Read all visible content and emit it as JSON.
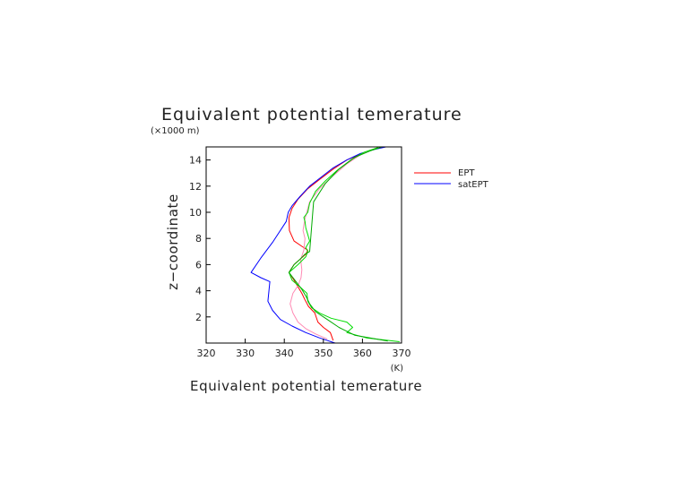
{
  "chart_data": {
    "type": "line",
    "title": "Equivalent potential temerature",
    "xlabel": "Equivalent potential temerature",
    "ylabel": "z−coordinate",
    "x_units": "(K)",
    "y_units": "(×1000 m)",
    "xlim": [
      320,
      370
    ],
    "ylim": [
      0,
      15
    ],
    "xticks": [
      "320",
      "330",
      "340",
      "350",
      "360",
      "370"
    ],
    "yticks": [
      "2",
      "4",
      "6",
      "8",
      "10",
      "12",
      "14"
    ],
    "grid": false,
    "legend_position": "right",
    "series": [
      {
        "name": "EPT",
        "color": "#ff0000",
        "x": [
          352.5,
          351.8,
          350.0,
          348.6,
          347.8,
          346.2,
          345.3,
          344.5,
          343.5,
          342.5,
          341.2,
          342.5,
          344.0,
          345.5,
          346.0,
          344.5,
          342.5,
          341.3,
          341.2,
          342.0,
          343.5,
          346.0,
          349.0,
          352.5,
          356.0,
          360.0,
          364.0
        ],
        "y": [
          0.2,
          0.8,
          1.2,
          1.6,
          2.3,
          2.8,
          3.3,
          3.8,
          4.3,
          4.8,
          5.4,
          6.0,
          6.4,
          6.8,
          7.1,
          7.4,
          7.8,
          8.6,
          9.6,
          10.3,
          11.0,
          11.8,
          12.5,
          13.3,
          14.0,
          14.5,
          14.95
        ]
      },
      {
        "name": "satEPT",
        "color": "#0000ff",
        "x": [
          353.0,
          349.0,
          345.5,
          342.0,
          339.0,
          337.0,
          335.8,
          336.3,
          334.0,
          331.5,
          334.0,
          337.0,
          340.5,
          341.0,
          342.0,
          344.0,
          346.5,
          349.5,
          352.5,
          356.0,
          359.5,
          363.0,
          366.0
        ],
        "y": [
          0.0,
          0.4,
          0.8,
          1.3,
          1.8,
          2.5,
          3.2,
          4.7,
          5.0,
          5.4,
          6.5,
          7.7,
          9.3,
          10.0,
          10.5,
          11.2,
          12.0,
          12.7,
          13.4,
          14.0,
          14.5,
          14.8,
          15.0
        ]
      },
      {
        "name": "",
        "color": "#ff8ab4",
        "x": [
          351.0,
          348.0,
          345.5,
          343.5,
          342.2,
          341.5,
          342.2,
          343.5,
          344.3,
          344.5,
          344.2,
          345.0,
          345.3,
          344.8,
          345.2,
          346.5,
          349.0,
          352.5,
          356.0,
          360.0,
          364.0
        ],
        "y": [
          0.3,
          0.7,
          1.1,
          1.6,
          2.3,
          3.0,
          3.8,
          4.4,
          5.0,
          5.6,
          6.4,
          7.1,
          8.0,
          8.6,
          9.4,
          10.8,
          11.8,
          12.8,
          13.7,
          14.5,
          14.95
        ]
      },
      {
        "name": "",
        "color": "#00dd00",
        "x": [
          369.5,
          361.0,
          356.0,
          357.5,
          356.0,
          352.0,
          349.0,
          347.0,
          346.0,
          345.8,
          344.0,
          342.0,
          341.2,
          343.5,
          345.5,
          346.0,
          345.5,
          346.5,
          346.0,
          345.5,
          345.3,
          345.0,
          346.0,
          346.5,
          348.0,
          350.5,
          353.5,
          357.0,
          360.5,
          364.0
        ],
        "y": [
          0.1,
          0.4,
          0.8,
          1.2,
          1.6,
          1.9,
          2.3,
          2.7,
          3.2,
          3.8,
          4.3,
          4.8,
          5.4,
          6.0,
          6.6,
          7.0,
          7.3,
          7.8,
          8.3,
          8.8,
          9.3,
          9.6,
          10.0,
          10.7,
          11.6,
          12.4,
          13.2,
          14.0,
          14.6,
          14.95
        ]
      },
      {
        "name": "",
        "color": "#00aa00",
        "x": [
          366.5,
          358.0,
          354.0,
          351.0,
          348.0,
          346.5,
          345.5,
          344.5,
          343.0,
          341.2,
          342.5,
          344.0,
          345.3,
          346.5,
          347.5,
          350.5,
          354.0,
          358.0,
          362.0,
          365.0
        ],
        "y": [
          0.15,
          0.6,
          1.2,
          1.8,
          2.4,
          3.0,
          3.6,
          4.1,
          4.7,
          5.4,
          6.0,
          6.4,
          6.8,
          7.0,
          10.8,
          12.2,
          13.3,
          14.2,
          14.7,
          15.0
        ]
      }
    ]
  }
}
